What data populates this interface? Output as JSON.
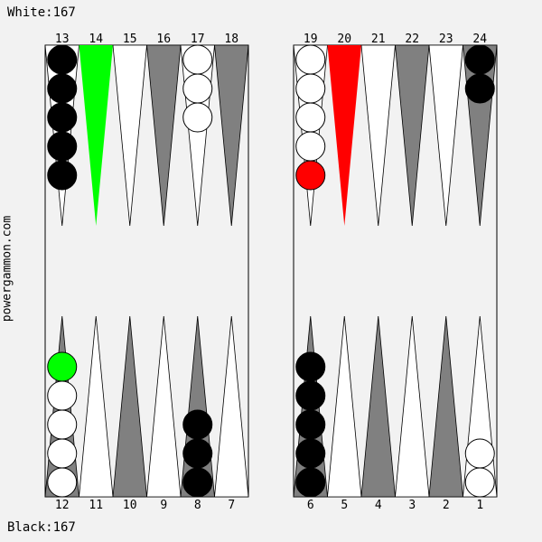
{
  "scores": {
    "white": "White:167",
    "black": "Black:167"
  },
  "site": "powergammon.com",
  "colors": {
    "background": "#f2f2f2",
    "light_point": "#ffffff",
    "dark_point": "#808080",
    "from_highlight": "#00ff00",
    "to_highlight": "#ff0000",
    "white_checker": "#ffffff",
    "black_checker": "#000000"
  },
  "points": [
    {
      "n": "1",
      "color": "light",
      "checkers": [
        {
          "c": "white"
        },
        {
          "c": "white"
        }
      ]
    },
    {
      "n": "2",
      "color": "dark",
      "checkers": []
    },
    {
      "n": "3",
      "color": "light",
      "checkers": []
    },
    {
      "n": "4",
      "color": "dark",
      "checkers": []
    },
    {
      "n": "5",
      "color": "light",
      "checkers": []
    },
    {
      "n": "6",
      "color": "dark",
      "checkers": [
        {
          "c": "black"
        },
        {
          "c": "black"
        },
        {
          "c": "black"
        },
        {
          "c": "black"
        },
        {
          "c": "black"
        }
      ]
    },
    {
      "n": "7",
      "color": "light",
      "checkers": []
    },
    {
      "n": "8",
      "color": "dark",
      "checkers": [
        {
          "c": "black"
        },
        {
          "c": "black"
        },
        {
          "c": "black"
        }
      ]
    },
    {
      "n": "9",
      "color": "light",
      "checkers": []
    },
    {
      "n": "10",
      "color": "dark",
      "checkers": []
    },
    {
      "n": "11",
      "color": "light",
      "checkers": []
    },
    {
      "n": "12",
      "color": "dark",
      "checkers": [
        {
          "c": "white"
        },
        {
          "c": "white"
        },
        {
          "c": "white"
        },
        {
          "c": "white"
        },
        {
          "c": "highlight-green"
        }
      ]
    },
    {
      "n": "13",
      "color": "light",
      "checkers": [
        {
          "c": "black"
        },
        {
          "c": "black"
        },
        {
          "c": "black"
        },
        {
          "c": "black"
        },
        {
          "c": "black"
        }
      ]
    },
    {
      "n": "14",
      "color": "highlight-green",
      "checkers": []
    },
    {
      "n": "15",
      "color": "light",
      "checkers": []
    },
    {
      "n": "16",
      "color": "dark",
      "checkers": []
    },
    {
      "n": "17",
      "color": "light",
      "checkers": [
        {
          "c": "white"
        },
        {
          "c": "white"
        },
        {
          "c": "white"
        }
      ]
    },
    {
      "n": "18",
      "color": "dark",
      "checkers": []
    },
    {
      "n": "19",
      "color": "light",
      "checkers": [
        {
          "c": "white"
        },
        {
          "c": "white"
        },
        {
          "c": "white"
        },
        {
          "c": "white"
        },
        {
          "c": "highlight-red"
        }
      ]
    },
    {
      "n": "20",
      "color": "highlight-red",
      "checkers": []
    },
    {
      "n": "21",
      "color": "light",
      "checkers": []
    },
    {
      "n": "22",
      "color": "dark",
      "checkers": []
    },
    {
      "n": "23",
      "color": "light",
      "checkers": []
    },
    {
      "n": "24",
      "color": "dark",
      "checkers": [
        {
          "c": "black"
        },
        {
          "c": "black"
        }
      ]
    }
  ]
}
